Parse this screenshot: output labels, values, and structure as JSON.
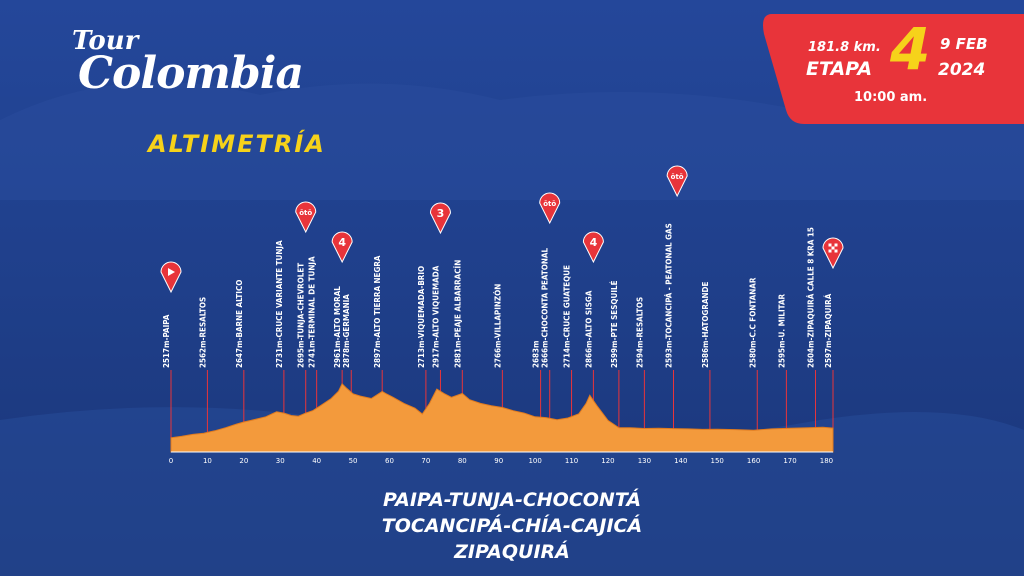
{
  "header": {
    "logo_top": "Tour",
    "logo_bottom": "Colombia",
    "title": "ALTIMETRÍA"
  },
  "badge": {
    "distance": "181.8 km.",
    "etapa_label": "ETAPA",
    "stage_number": "4",
    "date": "9 FEB",
    "year": "2024",
    "time": "10:00 am."
  },
  "route_lines": [
    "PAIPA-TUNJA-CHOCONTÁ",
    "TOCANCIPÁ-CHÍA-CAJICÁ",
    "ZIPAQUIRÁ"
  ],
  "colors": {
    "background": "#1f3f8a",
    "profile_fill": "#f39a3c",
    "marker_red": "#e8343a",
    "title_yellow": "#f6d21a"
  },
  "chart_data": {
    "type": "area",
    "xlim": [
      0,
      181.8
    ],
    "xticks": [
      0,
      10,
      20,
      30,
      40,
      50,
      60,
      70,
      80,
      90,
      100,
      110,
      120,
      130,
      140,
      150,
      160,
      170,
      180
    ],
    "ylim": [
      2450,
      3000
    ],
    "profile": {
      "x": [
        0,
        3,
        6,
        9,
        10,
        12,
        15,
        18,
        20,
        22,
        26,
        29,
        31,
        33,
        35,
        37,
        39,
        41,
        44,
        46,
        47,
        48,
        50,
        52,
        55,
        58,
        59,
        61,
        64,
        67,
        69,
        71,
        73,
        75,
        77,
        80,
        82,
        85,
        88,
        91,
        94,
        97,
        100,
        103,
        106,
        109,
        112,
        114,
        115,
        117,
        120,
        123,
        126,
        130,
        134,
        138,
        142,
        146,
        150,
        155,
        160,
        165,
        170,
        175,
        179,
        181.8
      ],
      "y": [
        2517,
        2530,
        2545,
        2555,
        2562,
        2575,
        2600,
        2630,
        2647,
        2660,
        2690,
        2731,
        2720,
        2700,
        2695,
        2720,
        2741,
        2780,
        2840,
        2900,
        2961,
        2930,
        2878,
        2860,
        2840,
        2897,
        2880,
        2850,
        2800,
        2760,
        2713,
        2800,
        2917,
        2880,
        2850,
        2881,
        2830,
        2800,
        2780,
        2766,
        2740,
        2720,
        2690,
        2683,
        2666,
        2680,
        2714,
        2800,
        2866,
        2780,
        2660,
        2599,
        2600,
        2594,
        2595,
        2593,
        2590,
        2586,
        2588,
        2585,
        2580,
        2590,
        2595,
        2600,
        2604,
        2597
      ]
    },
    "waypoints": [
      {
        "km": 0,
        "label": "2517m-PAIPA"
      },
      {
        "km": 10,
        "label": "2562m-RESALTOS"
      },
      {
        "km": 20,
        "label": "2647m-BARNE ALTICO"
      },
      {
        "km": 31,
        "label": "2731m-CRUCE VARIANTE TUNJA"
      },
      {
        "km": 37,
        "label": "2695m-TUNJA-CHEVROLET"
      },
      {
        "km": 40,
        "label": "2741m-TERMINAL DE TUNJA"
      },
      {
        "km": 47,
        "label": "2961m-ALTO MORAL"
      },
      {
        "km": 49.5,
        "label": "2878m-GERMANIA"
      },
      {
        "km": 58,
        "label": "2897m-ALTO TIERRA NEGRA"
      },
      {
        "km": 70,
        "label": "2713m-VIQUEMADA-BRIO"
      },
      {
        "km": 74,
        "label": "2917m-ALTO VIQUEMADA"
      },
      {
        "km": 80,
        "label": "2881m-PEAJE ALBARRACÍN"
      },
      {
        "km": 91,
        "label": "2766m-VILLAPINZÓN"
      },
      {
        "km": 101.5,
        "label": "2683m"
      },
      {
        "km": 104,
        "label": "2666m-CHOCONTA PEATONAL"
      },
      {
        "km": 110,
        "label": "2714m-CRUCE GUATEQUE"
      },
      {
        "km": 116,
        "label": "2866m-ALTO SISGA"
      },
      {
        "km": 123,
        "label": "2599m-PTE SESQUILÉ"
      },
      {
        "km": 130,
        "label": "2594m-RESALTOS"
      },
      {
        "km": 138,
        "label": "2593m-TOCANCIPÁ - PEATONAL GAS"
      },
      {
        "km": 148,
        "label": "2586m-HATOGRANDE"
      },
      {
        "km": 161,
        "label": "2580m-C.C FONTANAR"
      },
      {
        "km": 169,
        "label": "2595m-U. MILITAR"
      },
      {
        "km": 177,
        "label": "2604m-ZIPAQUIRÁ CALLE 8 KRA 15"
      },
      {
        "km": 181.8,
        "label": "2597m-ZIPAQUIRÁ"
      }
    ],
    "markers": [
      {
        "km": 0,
        "type": "start"
      },
      {
        "km": 37,
        "type": "sprint"
      },
      {
        "km": 47,
        "type": "category",
        "text": "4"
      },
      {
        "km": 74,
        "type": "category",
        "text": "3"
      },
      {
        "km": 104,
        "type": "sprint"
      },
      {
        "km": 116,
        "type": "category",
        "text": "4"
      },
      {
        "km": 139,
        "type": "sprint"
      },
      {
        "km": 181.8,
        "type": "finish"
      }
    ],
    "sprint_icon_text": "ōtō"
  }
}
